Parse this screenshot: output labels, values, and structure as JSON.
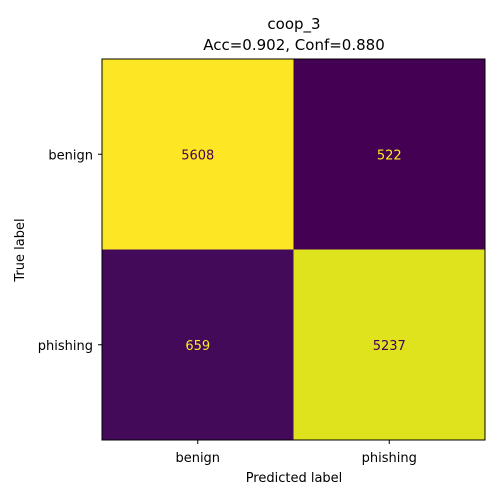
{
  "chart_data": {
    "type": "heatmap",
    "title": "coop_3",
    "subtitle": "Acc=0.902, Conf=0.880",
    "xlabel": "Predicted label",
    "ylabel": "True label",
    "x_categories": [
      "benign",
      "phishing"
    ],
    "y_categories": [
      "benign",
      "phishing"
    ],
    "values": [
      [
        5608,
        522
      ],
      [
        659,
        5237
      ]
    ],
    "colormap": "viridis",
    "grid": false,
    "colors": {
      "high_cell": "#fde725",
      "high_cell_2": "#d2e21b",
      "low_cell": "#440154",
      "low_cell_2": "#46085c",
      "text_on_dark": "#fde725",
      "text_on_light": "#440154"
    }
  }
}
